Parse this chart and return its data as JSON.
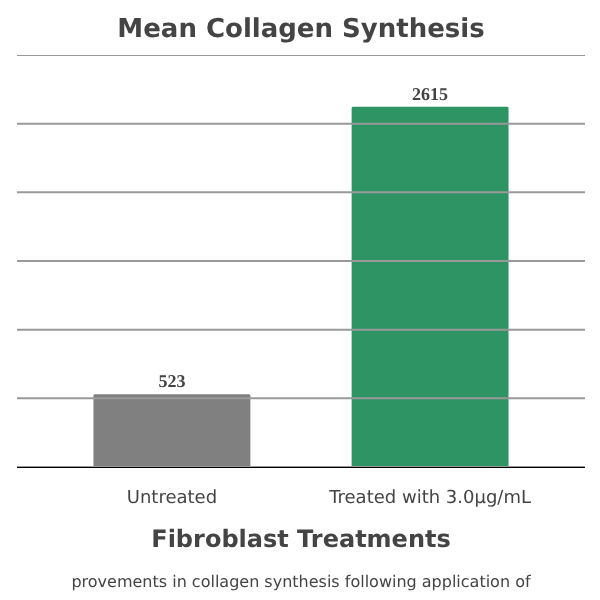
{
  "chart_data": {
    "type": "bar",
    "title": "Mean Collagen Synthesis",
    "xlabel": "Fibroblast Treatments",
    "categories": [
      "Untreated",
      "Treated with 3.0µg/mL"
    ],
    "values": [
      523,
      2615
    ],
    "colors": [
      "#808080",
      "#2e9464"
    ],
    "data_labels": true,
    "ylim": [
      0,
      3000
    ],
    "yticks": [
      {
        "value": 0,
        "label": null
      },
      {
        "value": 500,
        "label": null
      },
      {
        "value": 1000,
        "label": null
      },
      {
        "value": 1500,
        "label": null
      },
      {
        "value": 2000,
        "label": null
      },
      {
        "value": 2500,
        "label": null
      },
      {
        "value": 3000,
        "label": null
      }
    ],
    "tick_labels": "x",
    "grid": "y",
    "annotations": [
      "provements in collagen synthesis following application of"
    ]
  }
}
